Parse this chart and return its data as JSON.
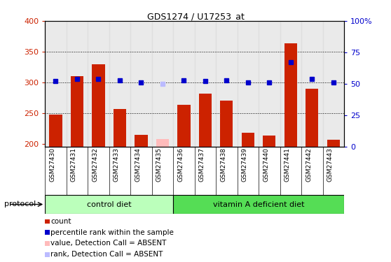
{
  "title": "GDS1274 / U17253_at",
  "samples": [
    "GSM27430",
    "GSM27431",
    "GSM27432",
    "GSM27433",
    "GSM27434",
    "GSM27435",
    "GSM27436",
    "GSM27437",
    "GSM27438",
    "GSM27439",
    "GSM27440",
    "GSM27441",
    "GSM27442",
    "GSM27443"
  ],
  "red_values": [
    247,
    310,
    329,
    257,
    214,
    null,
    263,
    281,
    270,
    218,
    213,
    363,
    289,
    206
  ],
  "blue_values": [
    52,
    54,
    54,
    53,
    51,
    null,
    53,
    52,
    53,
    51,
    51,
    67,
    54,
    51
  ],
  "absent_red": [
    null,
    null,
    null,
    null,
    null,
    208,
    null,
    null,
    null,
    null,
    null,
    null,
    null,
    null
  ],
  "absent_blue": [
    null,
    null,
    null,
    null,
    null,
    50,
    null,
    null,
    null,
    null,
    null,
    null,
    null,
    null
  ],
  "ylim_left": [
    195,
    400
  ],
  "ylim_right": [
    0,
    100
  ],
  "yticks_left": [
    200,
    250,
    300,
    350,
    400
  ],
  "yticks_right": [
    0,
    25,
    50,
    75,
    100
  ],
  "yticklabels_right": [
    "0",
    "25",
    "50",
    "75",
    "100%"
  ],
  "group1_label": "control diet",
  "group2_label": "vitamin A deficient diet",
  "bar_width": 0.6,
  "red_color": "#CC2200",
  "blue_color": "#0000CC",
  "absent_red_color": "#FFBBBB",
  "absent_blue_color": "#BBBBFF",
  "group1_color": "#BBFFBB",
  "group2_color": "#55DD55",
  "col_bg_color": "#DDDDDD",
  "legend_items": [
    {
      "color": "#CC2200",
      "label": "count"
    },
    {
      "color": "#0000CC",
      "label": "percentile rank within the sample"
    },
    {
      "color": "#FFBBBB",
      "label": "value, Detection Call = ABSENT"
    },
    {
      "color": "#BBBBFF",
      "label": "rank, Detection Call = ABSENT"
    }
  ]
}
